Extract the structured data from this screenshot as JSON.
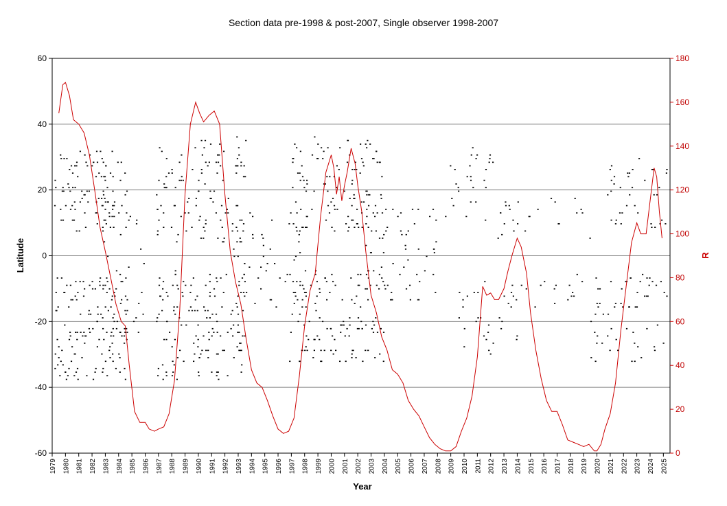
{
  "chart_data": {
    "type": "scatter",
    "title": "Section data pre-1998 & post-2007, Single observer 1998-2007",
    "xlabel": "Year",
    "ylabel": "Latitude",
    "y2label": "R",
    "xlim": [
      1979,
      2025.5
    ],
    "ylim": [
      -60,
      60
    ],
    "y2lim": [
      0,
      180
    ],
    "yticks": [
      -60,
      -40,
      -20,
      0,
      20,
      40,
      60
    ],
    "y2ticks": [
      0,
      20,
      40,
      60,
      80,
      100,
      120,
      140,
      160,
      180
    ],
    "xticks": [
      "1979",
      "1980",
      "1981",
      "1982",
      "1983",
      "1984",
      "1985",
      "1986",
      "1987",
      "1988",
      "1989",
      "1990",
      "1991",
      "1992",
      "1993",
      "1994",
      "1995",
      "1996",
      "1997",
      "1998",
      "1999",
      "2000",
      "2001",
      "2002",
      "2003",
      "2004",
      "2005",
      "2006",
      "2007",
      "2008",
      "2009",
      "2010",
      "2011",
      "2012",
      "2013",
      "2014",
      "2015",
      "2016",
      "2017",
      "2018",
      "2019",
      "2020",
      "2021",
      "2022",
      "2023",
      "2024",
      "2025"
    ],
    "grid": "horizontal",
    "colors": {
      "points": "#000000",
      "r_line": "#cc0000",
      "grid": "#808080",
      "right_axis": "#cc0000"
    },
    "series": [
      {
        "kind": "scatter",
        "axis": "left",
        "groups": [
          {
            "x": [
              1979.1,
              1984.6
            ],
            "band": [
              8,
              32
            ],
            "density": 0.85
          },
          {
            "x": [
              1979.1,
              1984.6
            ],
            "band": [
              -38,
              -6
            ],
            "density": 0.85
          },
          {
            "x": [
              1982.5,
              1986.0
            ],
            "band": [
              -24,
              18
            ],
            "density": 0.3
          },
          {
            "x": [
              1986.8,
              1993.6
            ],
            "band": [
              4,
              36
            ],
            "density": 0.6
          },
          {
            "x": [
              1986.8,
              1993.6
            ],
            "band": [
              -38,
              -4
            ],
            "density": 0.7
          },
          {
            "x": [
              1992.5,
              1997.8
            ],
            "band": [
              -16,
              14
            ],
            "density": 0.35
          },
          {
            "x": [
              1996.8,
              2003.8
            ],
            "band": [
              8,
              36
            ],
            "density": 0.7
          },
          {
            "x": [
              1996.8,
              2004.0
            ],
            "band": [
              -32,
              -4
            ],
            "density": 0.7
          },
          {
            "x": [
              2002.5,
              2008.0
            ],
            "band": [
              -14,
              16
            ],
            "density": 0.4
          },
          {
            "x": [
              2008.5,
              2012.2
            ],
            "band": [
              10,
              34
            ],
            "density": 0.35
          },
          {
            "x": [
              2009.5,
              2014.0
            ],
            "band": [
              -30,
              -8
            ],
            "density": 0.35
          },
          {
            "x": [
              2012.5,
              2019.5
            ],
            "band": [
              4,
              18
            ],
            "density": 0.3
          },
          {
            "x": [
              2013.5,
              2019.5
            ],
            "band": [
              -16,
              -4
            ],
            "density": 0.25
          },
          {
            "x": [
              2020.5,
              2025.3
            ],
            "band": [
              8,
              30
            ],
            "density": 0.4
          },
          {
            "x": [
              2019.5,
              2025.3
            ],
            "band": [
              -32,
              -6
            ],
            "density": 0.45
          }
        ]
      },
      {
        "kind": "line",
        "axis": "right",
        "x": [
          1979.5,
          1979.8,
          1980.0,
          1980.3,
          1980.6,
          1981.0,
          1981.4,
          1981.8,
          1982.2,
          1982.6,
          1983.0,
          1983.4,
          1983.8,
          1984.2,
          1984.5,
          1984.8,
          1985.2,
          1985.6,
          1986.0,
          1986.3,
          1986.7,
          1987.0,
          1987.4,
          1987.8,
          1988.2,
          1988.6,
          1989.0,
          1989.4,
          1989.8,
          1990.1,
          1990.4,
          1990.8,
          1991.2,
          1991.6,
          1992.0,
          1992.4,
          1992.8,
          1993.2,
          1993.6,
          1994.0,
          1994.4,
          1994.8,
          1995.2,
          1995.6,
          1996.0,
          1996.4,
          1996.8,
          1997.2,
          1997.6,
          1998.0,
          1998.4,
          1998.8,
          1999.2,
          1999.6,
          2000.0,
          2000.2,
          2000.4,
          2000.6,
          2000.8,
          2001.0,
          2001.2,
          2001.5,
          2001.8,
          2002.0,
          2002.3,
          2002.6,
          2003.0,
          2003.4,
          2003.8,
          2004.2,
          2004.6,
          2005.0,
          2005.4,
          2005.8,
          2006.2,
          2006.6,
          2007.0,
          2007.4,
          2007.8,
          2008.2,
          2008.6,
          2009.0,
          2009.4,
          2009.8,
          2010.2,
          2010.6,
          2011.0,
          2011.4,
          2011.7,
          2012.0,
          2012.3,
          2012.6,
          2013.0,
          2013.3,
          2013.6,
          2014.0,
          2014.3,
          2014.7,
          2015.0,
          2015.4,
          2015.8,
          2016.2,
          2016.6,
          2017.0,
          2017.4,
          2017.8,
          2018.2,
          2018.6,
          2019.0,
          2019.4,
          2019.8,
          2020.0,
          2020.3,
          2020.6,
          2021.0,
          2021.4,
          2021.8,
          2022.2,
          2022.6,
          2023.0,
          2023.3,
          2023.7,
          2024.0,
          2024.3,
          2024.5,
          2024.7,
          2024.9
        ],
        "y": [
          155,
          168,
          169,
          163,
          152,
          150,
          146,
          136,
          120,
          103,
          92,
          80,
          68,
          60,
          58,
          40,
          19,
          14,
          14,
          11,
          10,
          11,
          12,
          18,
          33,
          65,
          118,
          150,
          160,
          155,
          151,
          154,
          156,
          150,
          118,
          92,
          78,
          68,
          52,
          38,
          32,
          30,
          24,
          17,
          11,
          9,
          10,
          16,
          35,
          58,
          74,
          82,
          108,
          128,
          136,
          130,
          118,
          126,
          115,
          122,
          128,
          139,
          132,
          122,
          110,
          92,
          72,
          64,
          53,
          47,
          38,
          36,
          32,
          24,
          20,
          17,
          12,
          7,
          4,
          2,
          1,
          1,
          3,
          10,
          16,
          26,
          44,
          76,
          72,
          73,
          70,
          70,
          75,
          83,
          90,
          98,
          94,
          82,
          64,
          47,
          34,
          24,
          19,
          19,
          13,
          6,
          5,
          4,
          3,
          4,
          1,
          1,
          4,
          11,
          18,
          32,
          56,
          76,
          96,
          105,
          100,
          100,
          115,
          130,
          126,
          110,
          98
        ]
      }
    ]
  }
}
